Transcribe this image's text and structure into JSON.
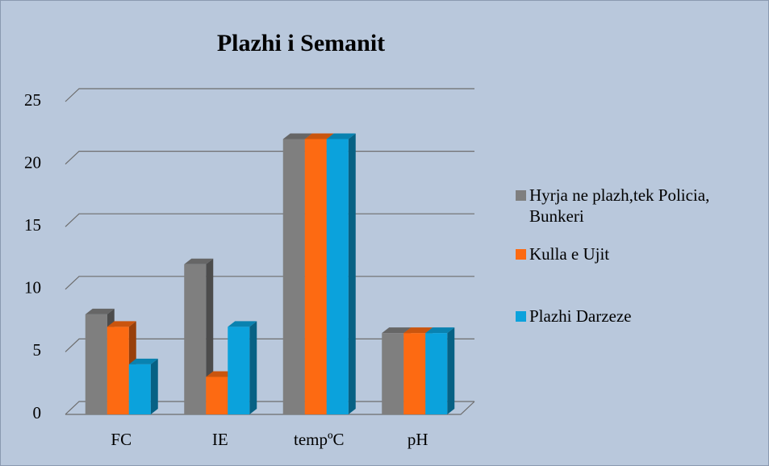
{
  "chart_data": {
    "type": "bar3d",
    "title": "Plazhi i Semanit",
    "categories": [
      "FC",
      "IE",
      "tempºC",
      "pH"
    ],
    "series": [
      {
        "name": "Hyrja ne plazh,tek Policia, Bunkeri",
        "color": "#7f7f7f",
        "values": [
          8,
          12,
          22,
          6.5
        ]
      },
      {
        "name": "Kulla e Ujit",
        "color": "#fd6a12",
        "values": [
          7,
          3,
          22,
          6.5
        ]
      },
      {
        "name": "Plazhi Darzeze",
        "color": "#0ba2dc",
        "values": [
          4,
          7,
          22,
          6.5
        ]
      }
    ],
    "ylim": [
      0,
      25
    ],
    "yticks": [
      0,
      5,
      10,
      15,
      20,
      25
    ],
    "grid": true,
    "legend": "right"
  }
}
